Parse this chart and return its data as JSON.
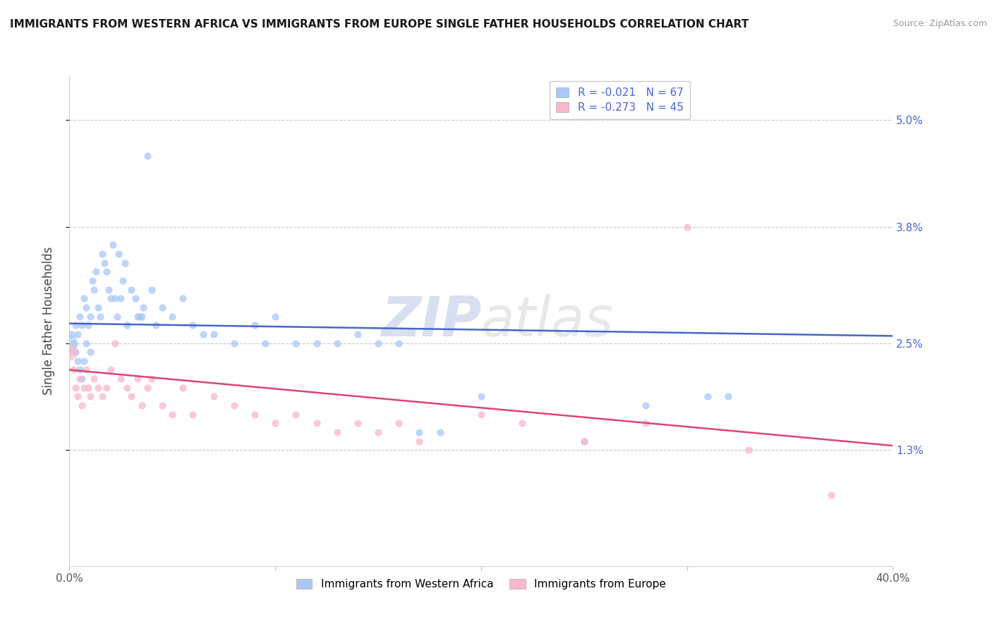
{
  "title": "IMMIGRANTS FROM WESTERN AFRICA VS IMMIGRANTS FROM EUROPE SINGLE FATHER HOUSEHOLDS CORRELATION CHART",
  "source": "Source: ZipAtlas.com",
  "ylabel": "Single Father Households",
  "xlim": [
    0.0,
    0.4
  ],
  "ylim": [
    0.0,
    0.055
  ],
  "ytick_positions": [
    0.013,
    0.025,
    0.038,
    0.05
  ],
  "ytick_labels": [
    "1.3%",
    "2.5%",
    "3.8%",
    "5.0%"
  ],
  "grid_color": "#c8c8c8",
  "background_color": "#ffffff",
  "watermark": "ZIPatlas",
  "blue_R": -0.021,
  "blue_N": 67,
  "pink_R": -0.273,
  "pink_N": 45,
  "blue_name": "Immigrants from Western Africa",
  "pink_name": "Immigrants from Europe",
  "blue_color": "#a8c8f8",
  "pink_color": "#f8b8cc",
  "blue_line_color": "#4466cc",
  "pink_line_color": "#dd4477",
  "blue_x": [
    0.001,
    0.002,
    0.003,
    0.003,
    0.004,
    0.004,
    0.005,
    0.005,
    0.006,
    0.006,
    0.007,
    0.007,
    0.008,
    0.008,
    0.009,
    0.01,
    0.01,
    0.011,
    0.012,
    0.013,
    0.014,
    0.015,
    0.016,
    0.017,
    0.018,
    0.019,
    0.02,
    0.021,
    0.022,
    0.023,
    0.024,
    0.025,
    0.026,
    0.027,
    0.028,
    0.03,
    0.032,
    0.033,
    0.034,
    0.035,
    0.036,
    0.038,
    0.04,
    0.042,
    0.045,
    0.05,
    0.055,
    0.06,
    0.065,
    0.07,
    0.08,
    0.09,
    0.095,
    0.1,
    0.11,
    0.12,
    0.13,
    0.14,
    0.15,
    0.16,
    0.17,
    0.18,
    0.2,
    0.25,
    0.28,
    0.31,
    0.32
  ],
  "blue_y": [
    0.026,
    0.025,
    0.027,
    0.024,
    0.026,
    0.023,
    0.028,
    0.022,
    0.027,
    0.021,
    0.03,
    0.023,
    0.029,
    0.025,
    0.027,
    0.028,
    0.024,
    0.032,
    0.031,
    0.033,
    0.029,
    0.028,
    0.035,
    0.034,
    0.033,
    0.031,
    0.03,
    0.036,
    0.03,
    0.028,
    0.035,
    0.03,
    0.032,
    0.034,
    0.027,
    0.031,
    0.03,
    0.028,
    0.028,
    0.028,
    0.029,
    0.046,
    0.031,
    0.027,
    0.029,
    0.028,
    0.03,
    0.027,
    0.026,
    0.026,
    0.025,
    0.027,
    0.025,
    0.028,
    0.025,
    0.025,
    0.025,
    0.026,
    0.025,
    0.025,
    0.015,
    0.015,
    0.019,
    0.014,
    0.018,
    0.019,
    0.019
  ],
  "pink_x": [
    0.001,
    0.002,
    0.003,
    0.004,
    0.005,
    0.006,
    0.007,
    0.008,
    0.009,
    0.01,
    0.012,
    0.014,
    0.016,
    0.018,
    0.02,
    0.022,
    0.025,
    0.028,
    0.03,
    0.033,
    0.035,
    0.038,
    0.04,
    0.045,
    0.05,
    0.055,
    0.06,
    0.07,
    0.08,
    0.09,
    0.1,
    0.11,
    0.12,
    0.13,
    0.14,
    0.15,
    0.16,
    0.17,
    0.2,
    0.22,
    0.25,
    0.28,
    0.3,
    0.33,
    0.37
  ],
  "pink_y": [
    0.024,
    0.022,
    0.02,
    0.019,
    0.021,
    0.018,
    0.02,
    0.022,
    0.02,
    0.019,
    0.021,
    0.02,
    0.019,
    0.02,
    0.022,
    0.025,
    0.021,
    0.02,
    0.019,
    0.021,
    0.018,
    0.02,
    0.021,
    0.018,
    0.017,
    0.02,
    0.017,
    0.019,
    0.018,
    0.017,
    0.016,
    0.017,
    0.016,
    0.015,
    0.016,
    0.015,
    0.016,
    0.014,
    0.017,
    0.016,
    0.014,
    0.016,
    0.038,
    0.013,
    0.008
  ]
}
